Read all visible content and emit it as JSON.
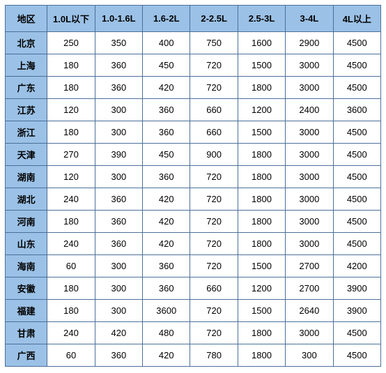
{
  "table": {
    "header_bg": "#9bc1e6",
    "border_color": "#4a7099",
    "cell_bg": "#ffffff",
    "text_color": "#000000",
    "font_size": 13,
    "columns": [
      "地区",
      "1.0L以下",
      "1.0-1.6L",
      "1.6-2L",
      "2-2.5L",
      "2.5-3L",
      "3-4L",
      "4L以上"
    ],
    "rows": [
      {
        "region": "北京",
        "values": [
          "250",
          "350",
          "400",
          "750",
          "1600",
          "2900",
          "4500"
        ]
      },
      {
        "region": "上海",
        "values": [
          "180",
          "360",
          "450",
          "720",
          "1500",
          "3000",
          "4500"
        ]
      },
      {
        "region": "广东",
        "values": [
          "180",
          "360",
          "420",
          "720",
          "1800",
          "3000",
          "4500"
        ]
      },
      {
        "region": "江苏",
        "values": [
          "120",
          "300",
          "360",
          "660",
          "1200",
          "2400",
          "3600"
        ]
      },
      {
        "region": "浙江",
        "values": [
          "180",
          "300",
          "360",
          "660",
          "1500",
          "3000",
          "4500"
        ]
      },
      {
        "region": "天津",
        "values": [
          "270",
          "390",
          "450",
          "900",
          "1800",
          "3000",
          "4500"
        ]
      },
      {
        "region": "湖南",
        "values": [
          "120",
          "300",
          "360",
          "720",
          "1800",
          "3000",
          "4500"
        ]
      },
      {
        "region": "湖北",
        "values": [
          "240",
          "360",
          "420",
          "720",
          "1800",
          "3000",
          "4500"
        ]
      },
      {
        "region": "河南",
        "values": [
          "180",
          "360",
          "420",
          "720",
          "1800",
          "3000",
          "4500"
        ]
      },
      {
        "region": "山东",
        "values": [
          "240",
          "360",
          "420",
          "720",
          "1800",
          "3000",
          "4500"
        ]
      },
      {
        "region": "海南",
        "values": [
          "60",
          "300",
          "360",
          "720",
          "1500",
          "2700",
          "4200"
        ]
      },
      {
        "region": "安徽",
        "values": [
          "180",
          "300",
          "360",
          "660",
          "1200",
          "2700",
          "3900"
        ]
      },
      {
        "region": "福建",
        "values": [
          "180",
          "300",
          "3600",
          "720",
          "1500",
          "2640",
          "3900"
        ]
      },
      {
        "region": "甘肃",
        "values": [
          "240",
          "420",
          "480",
          "720",
          "1800",
          "3000",
          "4500"
        ]
      },
      {
        "region": "广西",
        "values": [
          "60",
          "360",
          "420",
          "780",
          "1800",
          "300",
          "4500"
        ]
      }
    ]
  },
  "watermark": {
    "text": "希财",
    "circle_color": "#f5a623",
    "text_color": "#e64545",
    "opacity": 0.18
  }
}
